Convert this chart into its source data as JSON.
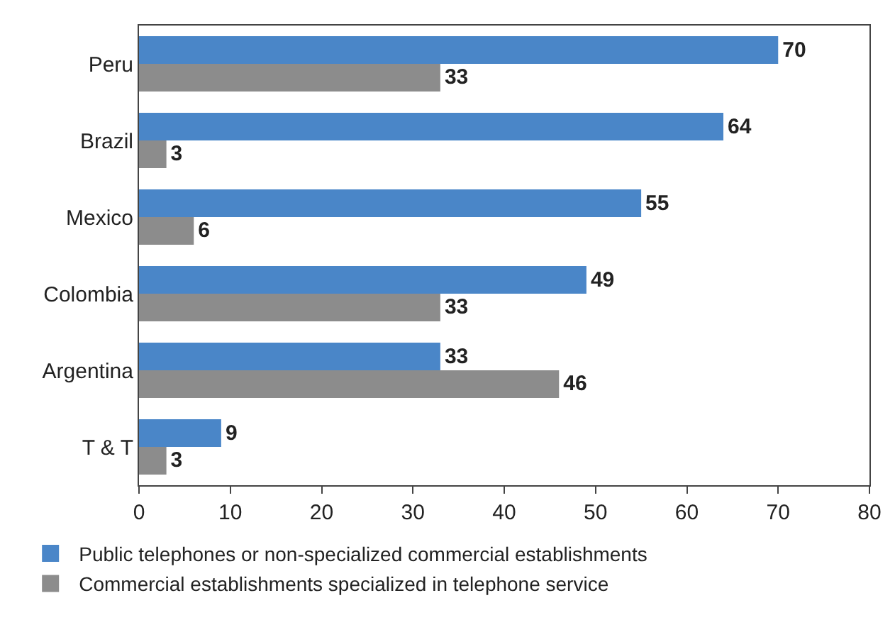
{
  "chart_data": {
    "type": "bar",
    "orientation": "horizontal",
    "categories": [
      "Peru",
      "Brazil",
      "Mexico",
      "Colombia",
      "Argentina",
      "T & T"
    ],
    "series": [
      {
        "name": "Public telephones or non-specialized commercial establishments",
        "color": "#4a86c8",
        "values": [
          70,
          64,
          55,
          49,
          33,
          9
        ]
      },
      {
        "name": "Commercial establishments specialized in telephone service",
        "color": "#8c8c8c",
        "values": [
          33,
          3,
          6,
          33,
          46,
          3
        ]
      }
    ],
    "xlim": [
      0,
      80
    ],
    "xticks": [
      0,
      10,
      20,
      30,
      40,
      50,
      60,
      70,
      80
    ],
    "data_labels": true,
    "legend": "bottom"
  }
}
